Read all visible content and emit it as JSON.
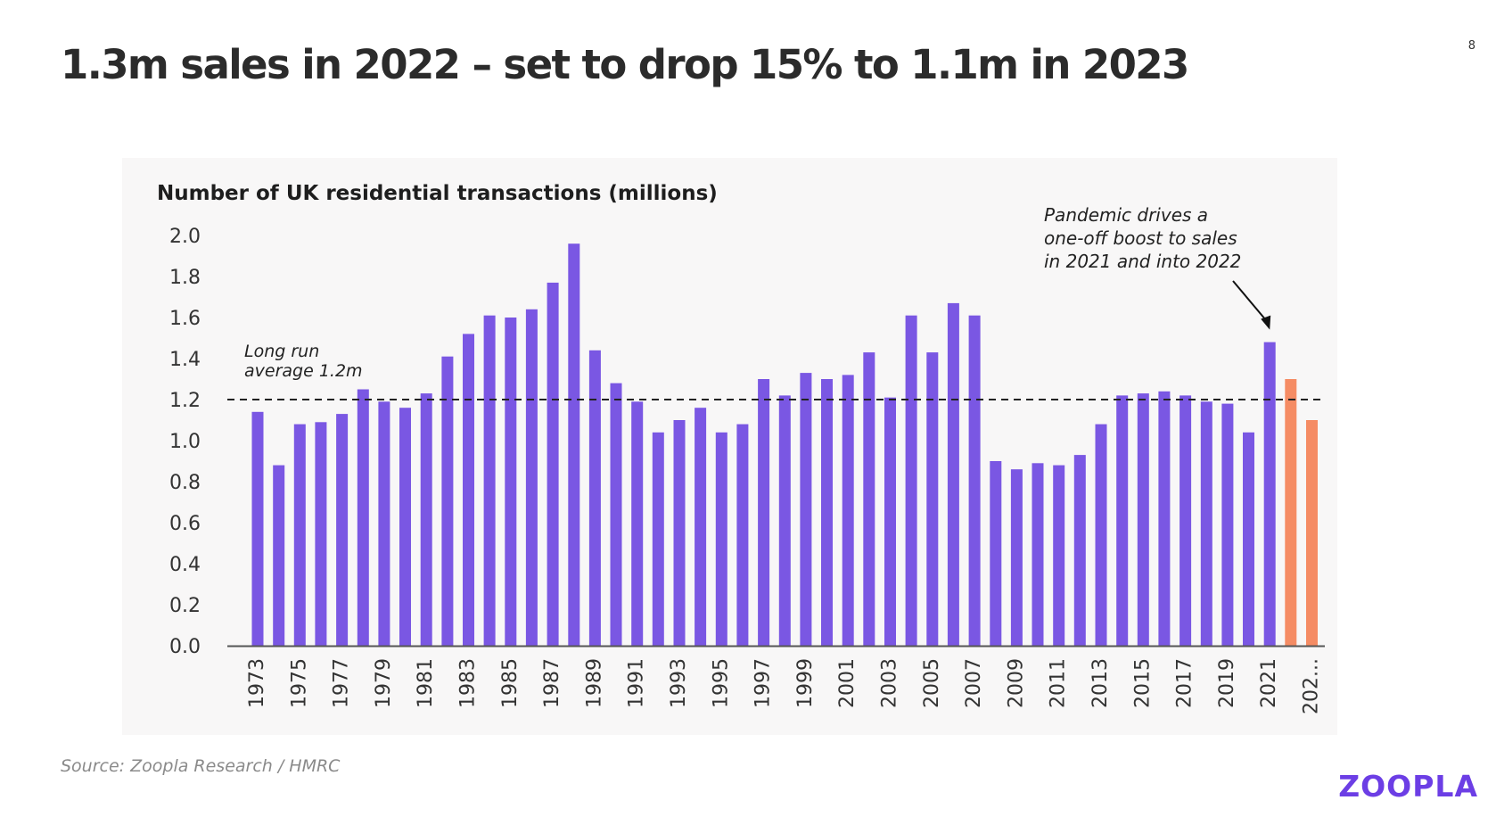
{
  "slide": {
    "title": "1.3m sales in 2022 – set to drop 15% to 1.1m in 2023",
    "page_number": "8",
    "source": "Source: Zoopla Research / HMRC",
    "brand": "ZOOPLA"
  },
  "colors": {
    "bar": "#7a57e3",
    "forecast_bar": "#f58c64",
    "average_line": "#222222",
    "panel_background": "#f8f7f7"
  },
  "chart_data": {
    "type": "bar",
    "title": "Number of UK residential transactions (millions)",
    "xlabel": "",
    "ylabel": "",
    "ylim": [
      0,
      2.0
    ],
    "yticks": [
      "0.0",
      "0.2",
      "0.4",
      "0.6",
      "0.8",
      "1.0",
      "1.2",
      "1.4",
      "1.6",
      "1.8",
      "2.0"
    ],
    "categories": [
      "1973",
      "1974",
      "1975",
      "1976",
      "1977",
      "1978",
      "1979",
      "1980",
      "1981",
      "1982",
      "1983",
      "1984",
      "1985",
      "1986",
      "1987",
      "1988",
      "1989",
      "1990",
      "1991",
      "1992",
      "1993",
      "1994",
      "1995",
      "1996",
      "1997",
      "1998",
      "1999",
      "2000",
      "2001",
      "2002",
      "2003",
      "2004",
      "2005",
      "2006",
      "2007",
      "2008",
      "2009",
      "2010",
      "2011",
      "2012",
      "2013",
      "2014",
      "2015",
      "2016",
      "2017",
      "2018",
      "2019",
      "2020",
      "2021",
      "2022",
      "2023"
    ],
    "x_tick_labels": [
      "1973",
      "1975",
      "1977",
      "1979",
      "1981",
      "1983",
      "1985",
      "1987",
      "1989",
      "1991",
      "1993",
      "1995",
      "1997",
      "1999",
      "2001",
      "2003",
      "2005",
      "2007",
      "2009",
      "2011",
      "2013",
      "2015",
      "2017",
      "2019",
      "2021",
      "202..."
    ],
    "values": [
      1.14,
      0.88,
      1.08,
      1.09,
      1.13,
      1.25,
      1.19,
      1.16,
      1.23,
      1.41,
      1.52,
      1.61,
      1.6,
      1.64,
      1.77,
      1.96,
      1.44,
      1.28,
      1.19,
      1.04,
      1.1,
      1.16,
      1.04,
      1.08,
      1.3,
      1.22,
      1.33,
      1.3,
      1.32,
      1.43,
      1.21,
      1.61,
      1.43,
      1.67,
      1.61,
      0.9,
      0.86,
      0.89,
      0.88,
      0.93,
      1.08,
      1.22,
      1.23,
      1.24,
      1.22,
      1.19,
      1.18,
      1.04,
      1.48,
      1.3,
      1.1
    ],
    "forecast_categories": [
      "2022",
      "2023"
    ],
    "reference_line": {
      "value": 1.2,
      "style": "dashed"
    },
    "annotations": {
      "average_label": [
        "Long run",
        "average 1.2m"
      ],
      "pandemic_label": [
        "Pandemic drives a",
        "one-off boost to sales",
        "in 2021 and into 2022"
      ]
    },
    "grid": false,
    "legend": "none"
  }
}
